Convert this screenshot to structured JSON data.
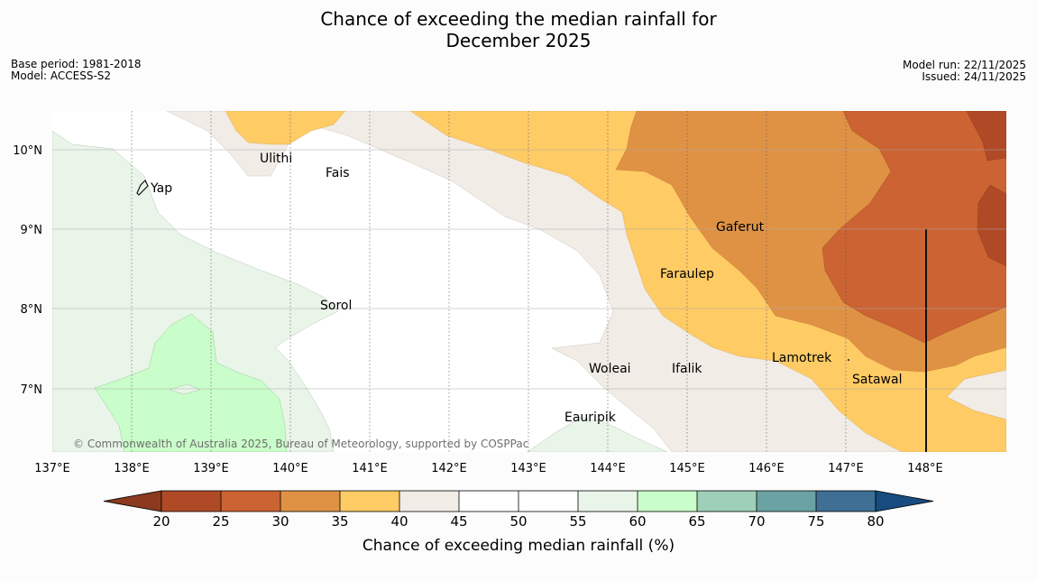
{
  "title": {
    "line1": "Chance of exceeding the median rainfall for",
    "line2": "December 2025"
  },
  "meta_left": {
    "base_period": "Base period: 1981-2018",
    "model": "Model: ACCESS-S2"
  },
  "meta_right": {
    "model_run": "Model run: 22/11/2025",
    "issued": "Issued: 24/11/2025"
  },
  "map": {
    "lon_ticks": [
      "137°E",
      "138°E",
      "139°E",
      "140°E",
      "141°E",
      "142°E",
      "143°E",
      "144°E",
      "145°E",
      "146°E",
      "147°E",
      "148°E"
    ],
    "lat_ticks": [
      "10°N",
      "9°N",
      "8°N",
      "7°N"
    ],
    "places": {
      "ulithi": "Ulithi",
      "fais": "Fais",
      "yap": "Yap",
      "gaferut": "Gaferut",
      "faraulep": "Faraulep",
      "sorol": "Sorol",
      "lamotrek": "Lamotrek",
      "woleai": "Woleai",
      "ifalik": "Ifalik",
      "satawal": "Satawal",
      "eauripik": "Eauripik"
    },
    "copyright": "© Commonwealth of Australia 2025, Bureau of Meteorology, supported by COSPPac"
  },
  "colorbar": {
    "label": "Chance of exceeding median rainfall (%)",
    "ticks": [
      "20",
      "25",
      "30",
      "35",
      "40",
      "45",
      "50",
      "55",
      "60",
      "65",
      "70",
      "75",
      "80"
    ],
    "colors": {
      "under": "#8b3a1f",
      "c20_25": "#b04a26",
      "c25_30": "#cc6332",
      "c30_35": "#e09244",
      "c35_40": "#fecb65",
      "c40_45": "#f1ece6",
      "c45_50": "#ffffff",
      "c50_55": "#ffffff",
      "c55_60": "#eaf5e9",
      "c60_65": "#c9fdc9",
      "c65_70": "#9ecfb9",
      "c70_75": "#6ba2a3",
      "c75_80": "#3f6f94",
      "over": "#184c80"
    }
  }
}
